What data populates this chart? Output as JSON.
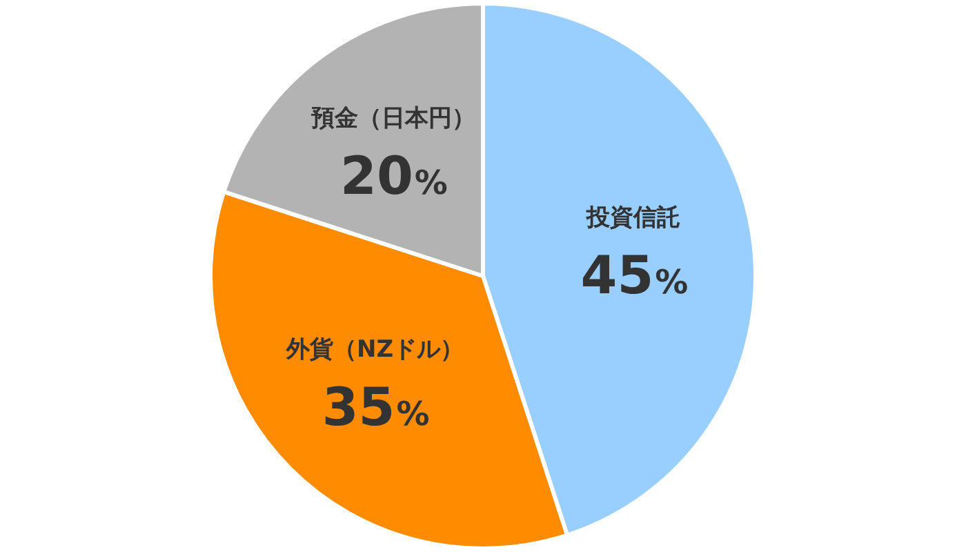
{
  "chart_data": {
    "type": "pie",
    "categories": [
      "投資信託",
      "外貨（NZドル）",
      "預金（日本円）"
    ],
    "values": [
      45,
      35,
      20
    ],
    "colors": [
      "#99cfff",
      "#ff8c00",
      "#b3b3b3"
    ],
    "value_labels": [
      "45%",
      "35%",
      "20%"
    ],
    "legend": false
  }
}
